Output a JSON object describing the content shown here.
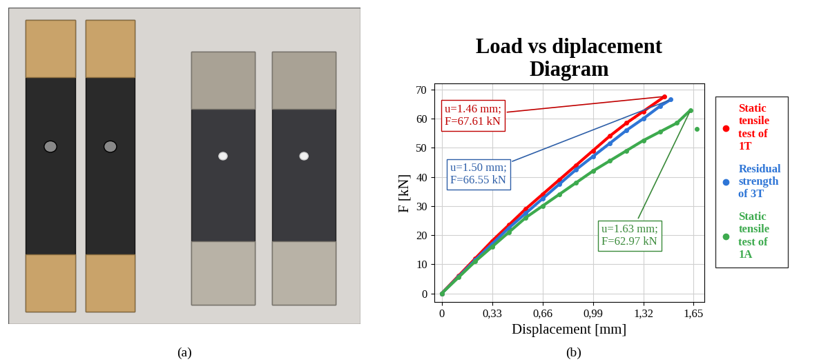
{
  "chart_data": {
    "type": "line",
    "title": "Load vs diplacement\nDiagram",
    "x_label": "Displacement [mm]",
    "y_label": "F [kN]",
    "xlim": [
      -0.05,
      1.72
    ],
    "ylim": [
      -3,
      72
    ],
    "xticks": [
      {
        "value": 0,
        "label": "0"
      },
      {
        "value": 0.33,
        "label": "0,33"
      },
      {
        "value": 0.66,
        "label": "0,66"
      },
      {
        "value": 0.99,
        "label": "0,99"
      },
      {
        "value": 1.32,
        "label": "1,32"
      },
      {
        "value": 1.65,
        "label": "1,65"
      }
    ],
    "yticks": [
      0,
      10,
      20,
      30,
      40,
      50,
      60,
      70
    ],
    "grid": true,
    "legend": "right",
    "series": [
      {
        "name": "Static tensile test of 1T",
        "color": "#ff0000",
        "marker": "o",
        "line_style": "solid",
        "x": [
          0,
          0.11,
          0.22,
          0.33,
          0.44,
          0.55,
          0.66,
          0.77,
          0.88,
          0.99,
          1.1,
          1.21,
          1.32,
          1.46
        ],
        "values": [
          0,
          6,
          12,
          18,
          23.5,
          29,
          34,
          39,
          44,
          49,
          54,
          58.5,
          62.5,
          67.61
        ]
      },
      {
        "name": "Residual strength of 3T",
        "color": "#2e75d6",
        "marker": "o",
        "line_style": "solid",
        "x": [
          0,
          0.11,
          0.22,
          0.33,
          0.44,
          0.55,
          0.66,
          0.77,
          0.88,
          0.99,
          1.1,
          1.21,
          1.32,
          1.43,
          1.5
        ],
        "values": [
          0,
          5.7,
          11.5,
          17,
          22.5,
          27.5,
          32.5,
          37.5,
          42.5,
          47,
          51.5,
          56,
          60,
          64.3,
          66.55
        ]
      },
      {
        "name": "Static tensile test of 1A",
        "color": "#3daa4e",
        "marker": "o",
        "line_style": "solid",
        "x": [
          0,
          0.11,
          0.22,
          0.33,
          0.44,
          0.55,
          0.66,
          0.77,
          0.88,
          0.99,
          1.1,
          1.21,
          1.32,
          1.43,
          1.54,
          1.63,
          1.65,
          1.67
        ],
        "values": [
          0,
          5.5,
          11,
          16,
          21,
          26,
          30,
          34,
          38,
          42,
          45.5,
          49,
          52.5,
          55.5,
          58.5,
          62.97,
          null,
          56.5
        ]
      }
    ],
    "annotations": [
      {
        "text": "u=1.46 mm;\nF=67.61 kN",
        "x": 1.46,
        "y": 67.61,
        "color": "#c00000"
      },
      {
        "text": "u=1.50 mm;\nF=66.55 kN",
        "x": 1.5,
        "y": 66.55,
        "color": "#2e5fa8"
      },
      {
        "text": "u=1.63 mm;\nF=62.97 kN",
        "x": 1.63,
        "y": 62.97,
        "color": "#3a8a3a"
      }
    ]
  },
  "panel_labels": [
    "(a)",
    "(b)"
  ]
}
